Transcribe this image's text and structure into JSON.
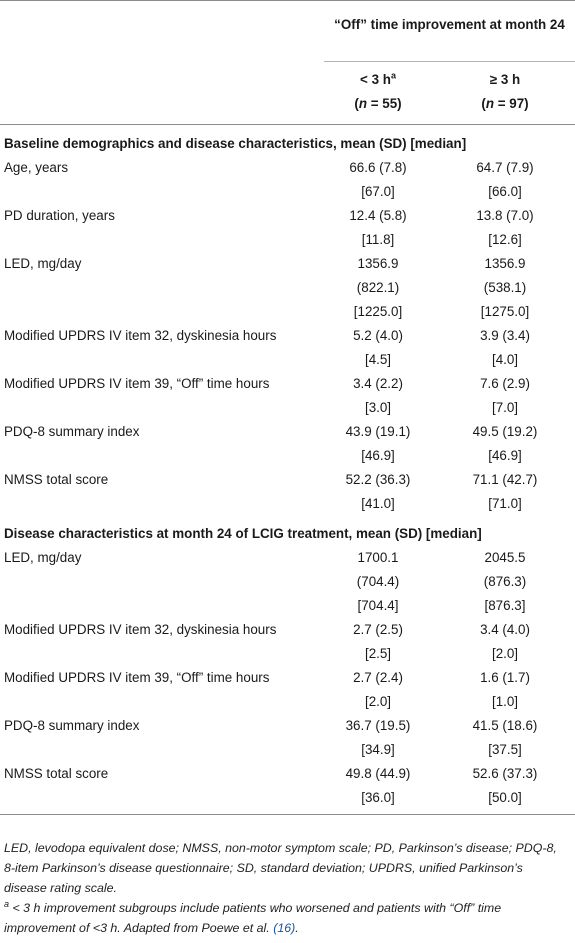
{
  "header": {
    "group_title": "“Off” time improvement at month 24",
    "col1_label": "< 3 h",
    "col1_sup": "a",
    "col1_n": "(n = 55)",
    "col2_label": "≥ 3 h",
    "col2_n": "(n = 97)"
  },
  "section1": {
    "title": "Baseline demographics and disease characteristics, mean (SD) [median]",
    "rows": [
      {
        "label": "Age, years",
        "a": [
          "66.6 (7.8)",
          "[67.0]"
        ],
        "b": [
          "64.7 (7.9)",
          "[66.0]"
        ]
      },
      {
        "label": "PD duration, years",
        "a": [
          "12.4 (5.8)",
          "[11.8]"
        ],
        "b": [
          "13.8 (7.0)",
          "[12.6]"
        ]
      },
      {
        "label": "LED, mg/day",
        "a": [
          "1356.9",
          "(822.1)",
          "[1225.0]"
        ],
        "b": [
          "1356.9",
          "(538.1)",
          "[1275.0]"
        ]
      },
      {
        "label": "Modified UPDRS IV item 32, dyskinesia hours",
        "a": [
          "5.2 (4.0)",
          "[4.5]"
        ],
        "b": [
          "3.9 (3.4)",
          "[4.0]"
        ]
      },
      {
        "label": "Modified UPDRS IV item 39, “Off” time hours",
        "a": [
          "3.4 (2.2)",
          "[3.0]"
        ],
        "b": [
          "7.6 (2.9)",
          "[7.0]"
        ]
      },
      {
        "label": "PDQ-8 summary index",
        "a": [
          "43.9 (19.1)",
          "[46.9]"
        ],
        "b": [
          "49.5 (19.2)",
          "[46.9]"
        ]
      },
      {
        "label": "NMSS total score",
        "a": [
          "52.2 (36.3)",
          "[41.0]"
        ],
        "b": [
          "71.1 (42.7)",
          "[71.0]"
        ]
      }
    ]
  },
  "section2": {
    "title": "Disease characteristics at month 24 of LCIG treatment, mean (SD) [median]",
    "rows": [
      {
        "label": "LED, mg/day",
        "a": [
          "1700.1",
          "(704.4)",
          "[704.4]"
        ],
        "b": [
          "2045.5",
          "(876.3)",
          "[876.3]"
        ]
      },
      {
        "label": "Modified UPDRS IV item 32, dyskinesia hours",
        "a": [
          "2.7 (2.5)",
          "[2.5]"
        ],
        "b": [
          "3.4 (4.0)",
          "[2.0]"
        ]
      },
      {
        "label": "Modified UPDRS IV item 39, “Off” time hours",
        "a": [
          "2.7 (2.4)",
          "[2.0]"
        ],
        "b": [
          "1.6 (1.7)",
          "[1.0]"
        ]
      },
      {
        "label": "PDQ-8 summary index",
        "a": [
          "36.7 (19.5)",
          "[34.9]"
        ],
        "b": [
          "41.5 (18.6)",
          "[37.5]"
        ]
      },
      {
        "label": "NMSS total score",
        "a": [
          "49.8 (44.9)",
          "[36.0]"
        ],
        "b": [
          "52.6 (37.3)",
          "[50.0]"
        ]
      }
    ]
  },
  "footnote": {
    "abbrev": "LED, levodopa equivalent dose; NMSS, non-motor symptom scale; PD, Parkinson’s disease; PDQ-8, 8-item Parkinson’s disease questionnaire; SD, standard deviation; UPDRS, unified Parkinson’s disease rating scale.",
    "note_marker": "a",
    "note_text": " < 3 h improvement subgroups include patients who worsened and patients with “Off” time improvement of <3 h. Adapted from Poewe et al. ",
    "note_ref": "(16)",
    "note_end": "."
  }
}
